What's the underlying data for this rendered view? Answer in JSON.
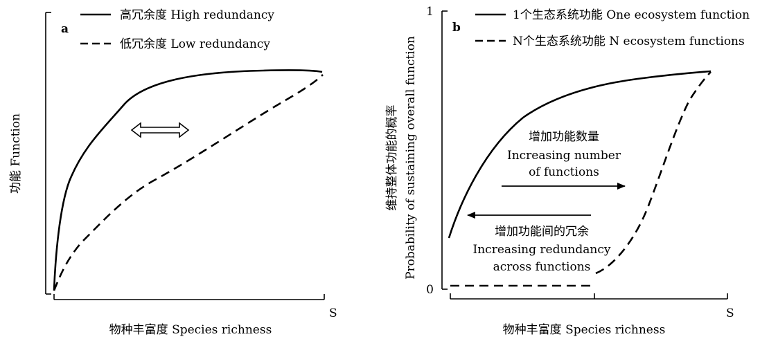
{
  "panel_a": {
    "panel_label": "a",
    "y_axis_label": "功能  Function",
    "x_axis_label": "物种丰富度  Species richness",
    "x_end_tick": "S",
    "legend": [
      {
        "style": "solid",
        "label": "高冗余度  High redundancy"
      },
      {
        "style": "dashed",
        "label": "低冗余度  Low redundancy"
      }
    ]
  },
  "panel_b": {
    "panel_label": "b",
    "y_axis_label_cn": "维持整体功能的概率",
    "y_axis_label_en": "Probability of sustaining overall function",
    "y_tick_top": "1",
    "y_tick_bottom": "0",
    "x_axis_label": "物种丰富度  Species richness",
    "x_end_tick": "S",
    "legend": [
      {
        "style": "solid",
        "label": "1个生态系统功能  One ecosystem function"
      },
      {
        "style": "dashed",
        "label": "N个生态系统功能  N ecosystem functions"
      }
    ],
    "annotation_right": {
      "line1": "增加功能数量",
      "line2": "Increasing number",
      "line3": "of functions"
    },
    "annotation_left": {
      "line1": "增加功能间的冗余",
      "line2": "Increasing redundancy",
      "line3": "across functions"
    }
  },
  "colors": {
    "line": "#000000",
    "background": "#ffffff"
  }
}
